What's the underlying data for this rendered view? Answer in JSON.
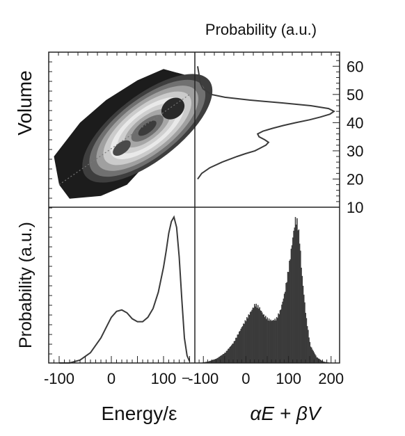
{
  "figure": {
    "top_label": "Probability (a.u.)",
    "left_top_label": "Volume",
    "left_bottom_label": "Probability (a.u.)",
    "bottom_left_label": "Energy/ε",
    "bottom_right_label": "αE + βV"
  },
  "colors": {
    "ink": "#3a3a3a",
    "contour_levels": [
      "#1c1c1c",
      "#3e3e3e",
      "#707070",
      "#a0a0a0",
      "#cbcbcb",
      "#e9e9e9",
      "#cfcfcf",
      "#a6a6a6",
      "#6e6e6e",
      "#3c3c3c"
    ]
  },
  "chart_data": [
    {
      "panel": "top-left",
      "type": "heatmap",
      "description_of_marks": "filled contour of joint probability over energy and volume with dotted diagonal line",
      "xlim": [
        -120,
        160
      ],
      "ylim": [
        10,
        65
      ],
      "peaks": [
        {
          "x": 20,
          "y": 31
        },
        {
          "x": 118,
          "y": 45
        }
      ],
      "diagonal": {
        "x": [
          -100,
          150
        ],
        "y": [
          18,
          50
        ]
      }
    },
    {
      "panel": "top-right",
      "type": "line",
      "ylabel": "",
      "ylim": [
        10,
        65
      ],
      "yticks": [
        10,
        20,
        30,
        40,
        50,
        60
      ],
      "axis": "y",
      "series": [
        {
          "y": [
            20,
            22,
            24,
            26,
            28,
            29,
            30,
            31,
            32,
            33,
            34,
            35,
            36,
            37,
            38,
            39,
            40,
            41,
            42,
            43,
            44,
            45,
            46,
            47,
            48,
            49,
            50,
            52,
            54,
            57,
            60
          ],
          "p": [
            0.0,
            0.03,
            0.09,
            0.18,
            0.29,
            0.35,
            0.42,
            0.46,
            0.5,
            0.52,
            0.49,
            0.45,
            0.44,
            0.48,
            0.55,
            0.63,
            0.72,
            0.82,
            0.9,
            0.97,
            1.0,
            0.96,
            0.83,
            0.62,
            0.38,
            0.2,
            0.1,
            0.04,
            0.02,
            0.01,
            0.0
          ]
        }
      ]
    },
    {
      "panel": "bottom-left",
      "type": "line",
      "xlim": [
        -120,
        160
      ],
      "xticks": [
        -100,
        0,
        100
      ],
      "series": [
        {
          "x": [
            -100,
            -80,
            -60,
            -40,
            -20,
            -10,
            0,
            10,
            20,
            30,
            40,
            50,
            60,
            70,
            80,
            90,
            100,
            105,
            110,
            115,
            120,
            125,
            130,
            135,
            140,
            145,
            150
          ],
          "y": [
            0.0,
            0.0,
            0.02,
            0.07,
            0.17,
            0.24,
            0.31,
            0.35,
            0.36,
            0.34,
            0.3,
            0.28,
            0.28,
            0.31,
            0.37,
            0.48,
            0.65,
            0.76,
            0.88,
            0.96,
            0.99,
            0.92,
            0.72,
            0.43,
            0.17,
            0.05,
            0.01
          ]
        }
      ]
    },
    {
      "panel": "bottom-right",
      "type": "bar",
      "xlim": [
        -120,
        220
      ],
      "xticks": [
        -100,
        0,
        100,
        200
      ],
      "profile_x": [
        -110,
        -90,
        -70,
        -50,
        -30,
        -10,
        0,
        10,
        20,
        30,
        40,
        50,
        60,
        70,
        80,
        90,
        100,
        110,
        115,
        120,
        125,
        130,
        140,
        150,
        165,
        180,
        200,
        215
      ],
      "profile_y": [
        0.0,
        0.01,
        0.03,
        0.07,
        0.14,
        0.25,
        0.3,
        0.35,
        0.4,
        0.38,
        0.33,
        0.3,
        0.29,
        0.3,
        0.36,
        0.48,
        0.66,
        0.88,
        0.98,
        0.96,
        0.84,
        0.62,
        0.32,
        0.12,
        0.04,
        0.01,
        0.0,
        0.0
      ]
    }
  ]
}
